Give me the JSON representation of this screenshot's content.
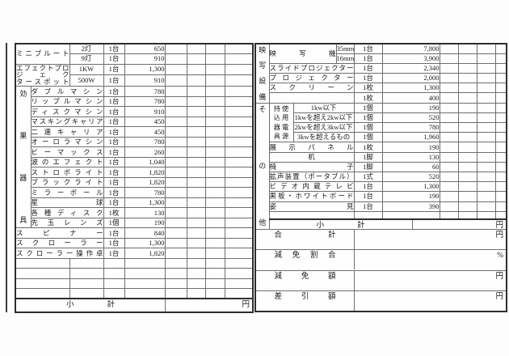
{
  "left_table": {
    "section_label": "効果器具",
    "rows": [
      {
        "type": "group2-first",
        "name": "ミニブルート",
        "spec": "2灯",
        "qty": "1台",
        "price": "650"
      },
      {
        "type": "group2-cont",
        "spec": "9灯",
        "qty": "1台",
        "price": "910"
      },
      {
        "type": "group2-first",
        "name": "エフェクトプロジェク\nタースポット",
        "spec": "1KW",
        "qty": "1台",
        "price": "1,300"
      },
      {
        "type": "group2-cont",
        "spec": "500W",
        "qty": "1台",
        "price": "910"
      },
      {
        "type": "labeled-first",
        "name": "ダブルマシン",
        "qty": "1台",
        "price": "780"
      },
      {
        "type": "labeled",
        "name": "リップルマシン",
        "qty": "1台",
        "price": "780"
      },
      {
        "type": "labeled",
        "name": "ディスクマシン",
        "qty": "1台",
        "price": "910"
      },
      {
        "type": "labeled",
        "name": "マスキングキャリア",
        "qty": "1台",
        "price": "450"
      },
      {
        "type": "labeled",
        "name": "二連キャリア",
        "qty": "1台",
        "price": "450"
      },
      {
        "type": "labeled",
        "name": "オーロラマシン",
        "qty": "1台",
        "price": "780"
      },
      {
        "type": "labeled",
        "name": "ビーマックス",
        "qty": "1台",
        "price": "260"
      },
      {
        "type": "labeled",
        "name": "波のエフェクト",
        "qty": "1台",
        "price": "1,040"
      },
      {
        "type": "labeled",
        "name": "ストロボライト",
        "qty": "1台",
        "price": "1,820"
      },
      {
        "type": "labeled",
        "name": "ブラックライト",
        "qty": "1台",
        "price": "1,820"
      },
      {
        "type": "labeled",
        "name": "ミラーボール",
        "qty": "1台",
        "price": "780"
      },
      {
        "type": "labeled",
        "name": "星球",
        "qty": "1台",
        "price": "1,300"
      },
      {
        "type": "labeled",
        "name": "各種ディスク",
        "qty": "1枚",
        "price": "130"
      },
      {
        "type": "labeled",
        "name": "先玉レンズ",
        "qty": "1個",
        "price": "190"
      },
      {
        "type": "wide",
        "name": "スピナー",
        "qty": "1台",
        "price": "840"
      },
      {
        "type": "wide",
        "name": "スクローラー",
        "qty": "1台",
        "price": "1,300"
      },
      {
        "type": "wide",
        "name": "スクローラー操作卓",
        "qty": "1台",
        "price": "1,820"
      },
      {
        "type": "blank"
      },
      {
        "type": "blank"
      },
      {
        "type": "blank"
      },
      {
        "type": "blank"
      }
    ],
    "subtotal": {
      "label": "小計",
      "unit": "円"
    }
  },
  "right_table": {
    "sections": {
      "projection": "映写設備",
      "other": "その他",
      "power_left": "持込器具",
      "power_right": "使用電源"
    },
    "rows": [
      {
        "type": "group2-first",
        "name": "映写機",
        "spec": "35mm",
        "qty": "1台",
        "price": "7,800"
      },
      {
        "type": "group2-cont",
        "spec": "16mm",
        "qty": "1台",
        "price": "3,900"
      },
      {
        "type": "full",
        "name": "スライドプロジェクター",
        "qty": "1台",
        "price": "2,340"
      },
      {
        "type": "full",
        "name": "プロジェクター",
        "qty": "1台",
        "price": "2,000"
      },
      {
        "type": "full",
        "name": "スクリーン",
        "qty": "1枚",
        "price": "1,300"
      },
      {
        "type": "full",
        "name": "",
        "qty": "1枚",
        "price": "400"
      },
      {
        "type": "power-first",
        "sub": "1kw以下",
        "qty": "1個",
        "price": "190"
      },
      {
        "type": "power",
        "sub": "1kwを超え2kw以下",
        "qty": "1個",
        "price": "520"
      },
      {
        "type": "power",
        "sub": "2kwを超え3kw以下",
        "qty": "1個",
        "price": "780"
      },
      {
        "type": "power",
        "sub": "3kwを超えるもの",
        "qty": "1個",
        "price": "1,960"
      },
      {
        "type": "full",
        "name": "展示パネル",
        "qty": "1枚",
        "price": "190"
      },
      {
        "type": "full",
        "name": "机",
        "qty": "1脚",
        "price": "130"
      },
      {
        "type": "full",
        "name": "椅子",
        "qty": "1脚",
        "price": "60"
      },
      {
        "type": "full",
        "name": "拡声装置（ポータブル）",
        "qty": "1式",
        "price": "520"
      },
      {
        "type": "full",
        "name": "ビデオ内蔵テレビ",
        "qty": "1台",
        "price": "1,300"
      },
      {
        "type": "full",
        "name": "黒板・ホワイトボード",
        "qty": "1台",
        "price": "190"
      },
      {
        "type": "full",
        "name": "姿見",
        "qty": "1台",
        "price": "390"
      },
      {
        "type": "blank-full"
      }
    ],
    "subtotal": {
      "label": "小計",
      "unit": "円"
    },
    "summary": [
      {
        "label": "合計",
        "unit": "円"
      },
      {
        "label": "減免割合",
        "unit": "%"
      },
      {
        "label": "減免額",
        "unit": "円"
      },
      {
        "label": "差引額",
        "unit": "円"
      }
    ]
  }
}
